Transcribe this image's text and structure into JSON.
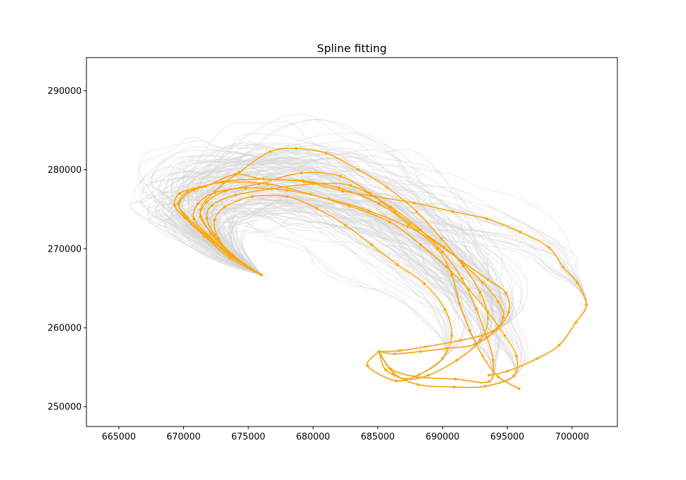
{
  "chart_data": {
    "type": "line",
    "title": "Spline fitting",
    "xlabel": "",
    "ylabel": "",
    "xlim": [
      662500,
      703500
    ],
    "ylim": [
      247500,
      294200
    ],
    "xticks": [
      665000,
      670000,
      675000,
      680000,
      685000,
      690000,
      695000,
      700000
    ],
    "yticks": [
      250000,
      260000,
      270000,
      280000,
      290000
    ],
    "xtick_labels": [
      "665000",
      "670000",
      "675000",
      "680000",
      "685000",
      "690000",
      "695000",
      "700000"
    ],
    "ytick_labels": [
      "250000",
      "260000",
      "270000",
      "280000",
      "290000"
    ],
    "grid": false,
    "colors": {
      "background_tracks": "#d3d3d3",
      "highlight": "#ffa500"
    },
    "series": [
      {
        "values": [
          [
            676000,
            266700
          ],
          [
            673500,
            269200
          ],
          [
            671800,
            271700
          ],
          [
            670300,
            274000
          ],
          [
            669600,
            275700
          ],
          [
            670300,
            277200
          ],
          [
            671700,
            277900
          ],
          [
            674000,
            279400
          ],
          [
            676200,
            278800
          ],
          [
            679200,
            278600
          ],
          [
            682000,
            277700
          ],
          [
            685100,
            275700
          ],
          [
            687400,
            273100
          ],
          [
            689600,
            270000
          ],
          [
            690700,
            266700
          ],
          [
            691300,
            263100
          ],
          [
            692100,
            259700
          ],
          [
            693100,
            256400
          ],
          [
            694300,
            253800
          ],
          [
            695900,
            252300
          ]
        ]
      },
      {
        "values": [
          [
            676000,
            266700
          ],
          [
            673800,
            269200
          ],
          [
            672400,
            271800
          ],
          [
            671800,
            273900
          ],
          [
            672200,
            275500
          ],
          [
            674000,
            276800
          ],
          [
            676800,
            277600
          ],
          [
            680000,
            278200
          ],
          [
            682900,
            278000
          ],
          [
            686000,
            275300
          ],
          [
            688300,
            272400
          ],
          [
            690000,
            269600
          ],
          [
            691500,
            266200
          ],
          [
            692600,
            262400
          ],
          [
            693400,
            258800
          ],
          [
            693900,
            255900
          ],
          [
            693600,
            253200
          ],
          [
            691000,
            253500
          ],
          [
            688000,
            253800
          ],
          [
            686000,
            254800
          ],
          [
            685100,
            257000
          ]
        ]
      },
      {
        "values": [
          [
            676000,
            266700
          ],
          [
            673600,
            268800
          ],
          [
            671600,
            271600
          ],
          [
            670100,
            273900
          ],
          [
            669300,
            275500
          ],
          [
            669700,
            277000
          ],
          [
            671200,
            277800
          ],
          [
            673400,
            278600
          ],
          [
            676200,
            278800
          ],
          [
            679300,
            278500
          ],
          [
            682300,
            277300
          ],
          [
            684800,
            276600
          ],
          [
            687800,
            275800
          ],
          [
            690800,
            274700
          ],
          [
            693400,
            273800
          ],
          [
            696000,
            272100
          ],
          [
            698200,
            270200
          ],
          [
            699300,
            267700
          ],
          [
            700400,
            265700
          ],
          [
            701100,
            262900
          ],
          [
            700300,
            260700
          ],
          [
            699000,
            257800
          ],
          [
            697300,
            256100
          ],
          [
            695000,
            254500
          ],
          [
            693600,
            254000
          ]
        ]
      },
      {
        "values": [
          [
            676000,
            266700
          ],
          [
            674000,
            268800
          ],
          [
            672700,
            271300
          ],
          [
            672400,
            273600
          ],
          [
            673200,
            275300
          ],
          [
            675300,
            276600
          ],
          [
            678000,
            276600
          ],
          [
            680300,
            275100
          ],
          [
            682500,
            273000
          ],
          [
            684500,
            270500
          ],
          [
            686500,
            268000
          ],
          [
            688600,
            265600
          ],
          [
            690200,
            262300
          ],
          [
            690700,
            259000
          ],
          [
            690000,
            256100
          ],
          [
            688200,
            254100
          ],
          [
            686400,
            253300
          ],
          [
            684200,
            255200
          ],
          [
            685100,
            257000
          ]
        ]
      },
      {
        "values": [
          [
            676000,
            266700
          ],
          [
            673800,
            269000
          ],
          [
            672000,
            271600
          ],
          [
            670800,
            273800
          ],
          [
            671100,
            275700
          ],
          [
            672400,
            277100
          ],
          [
            674800,
            277700
          ],
          [
            678000,
            277400
          ],
          [
            681200,
            276300
          ],
          [
            684300,
            274800
          ],
          [
            687300,
            272800
          ],
          [
            689400,
            270900
          ],
          [
            691500,
            268400
          ],
          [
            693500,
            266100
          ],
          [
            694900,
            264400
          ],
          [
            695100,
            262000
          ],
          [
            694200,
            259800
          ],
          [
            692500,
            257900
          ],
          [
            690400,
            257400
          ],
          [
            688300,
            257000
          ],
          [
            686300,
            256700
          ],
          [
            685100,
            257000
          ]
        ]
      },
      {
        "values": [
          [
            676000,
            266700
          ],
          [
            673900,
            269000
          ],
          [
            672300,
            271700
          ],
          [
            671300,
            274100
          ],
          [
            671800,
            275900
          ],
          [
            673200,
            277300
          ],
          [
            675800,
            278200
          ],
          [
            679100,
            279600
          ],
          [
            682100,
            279200
          ],
          [
            684400,
            277000
          ],
          [
            686300,
            274700
          ],
          [
            688200,
            272400
          ],
          [
            690100,
            270200
          ],
          [
            691600,
            268100
          ],
          [
            693100,
            265700
          ],
          [
            694300,
            263300
          ],
          [
            694700,
            261300
          ],
          [
            693800,
            259500
          ],
          [
            691400,
            258400
          ],
          [
            688700,
            257600
          ],
          [
            686700,
            257100
          ],
          [
            685100,
            257000
          ]
        ]
      },
      {
        "values": [
          [
            676000,
            266700
          ],
          [
            673700,
            269300
          ],
          [
            672100,
            272000
          ],
          [
            671300,
            274900
          ],
          [
            672400,
            277200
          ],
          [
            674300,
            279700
          ],
          [
            676700,
            282300
          ],
          [
            678700,
            282700
          ],
          [
            681000,
            282100
          ],
          [
            683500,
            280000
          ],
          [
            685700,
            277800
          ],
          [
            688000,
            274700
          ],
          [
            689900,
            271300
          ],
          [
            691600,
            267800
          ],
          [
            692900,
            264500
          ],
          [
            693500,
            261200
          ],
          [
            692900,
            258400
          ],
          [
            691100,
            255900
          ],
          [
            688900,
            254000
          ],
          [
            687200,
            253500
          ],
          [
            685600,
            254700
          ],
          [
            685100,
            257000
          ]
        ]
      },
      {
        "values": [
          [
            676000,
            266700
          ],
          [
            673500,
            269300
          ],
          [
            671500,
            271900
          ],
          [
            670000,
            274300
          ],
          [
            669700,
            275900
          ],
          [
            670800,
            277400
          ],
          [
            673000,
            278400
          ],
          [
            676500,
            278200
          ],
          [
            679800,
            276900
          ],
          [
            682800,
            275400
          ],
          [
            685900,
            273400
          ],
          [
            688300,
            270500
          ],
          [
            690300,
            267700
          ],
          [
            692000,
            264900
          ],
          [
            693500,
            262000
          ],
          [
            694800,
            259000
          ],
          [
            695700,
            256400
          ],
          [
            695500,
            253900
          ],
          [
            693300,
            252600
          ],
          [
            690900,
            252500
          ],
          [
            688100,
            252800
          ],
          [
            686200,
            254300
          ],
          [
            685100,
            257000
          ]
        ]
      }
    ]
  }
}
